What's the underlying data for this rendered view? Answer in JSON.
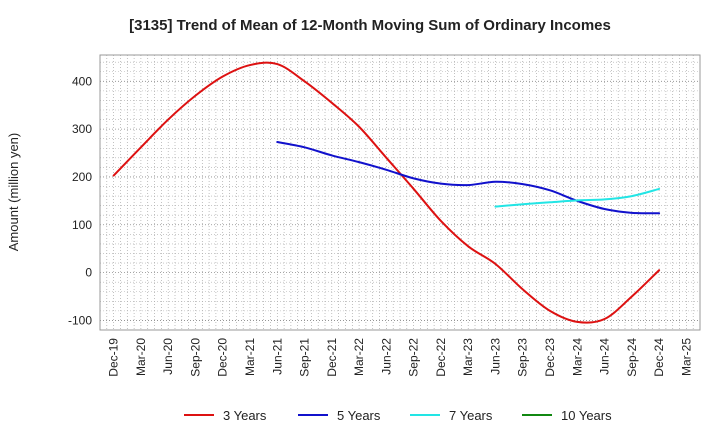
{
  "chart_data": {
    "type": "line",
    "title": "[3135]  Trend of Mean of 12-Month Moving Sum of Ordinary Incomes",
    "xlabel": "",
    "ylabel": "Amount (million yen)",
    "ylim": [
      -120,
      455
    ],
    "yticks": [
      -100,
      0,
      100,
      200,
      300,
      400
    ],
    "categories": [
      "Dec-19",
      "Mar-20",
      "Jun-20",
      "Sep-20",
      "Dec-20",
      "Mar-21",
      "Jun-21",
      "Sep-21",
      "Dec-21",
      "Mar-22",
      "Jun-22",
      "Sep-22",
      "Dec-22",
      "Mar-23",
      "Jun-23",
      "Sep-23",
      "Dec-23",
      "Mar-24",
      "Jun-24",
      "Sep-24",
      "Dec-24",
      "Mar-25"
    ],
    "grid": true,
    "legend_position": "bottom",
    "series": [
      {
        "name": "3 Years",
        "color": "#dd1111",
        "values": [
          203,
          262,
          320,
          370,
          410,
          434,
          436,
          400,
          355,
          305,
          240,
          175,
          108,
          55,
          18,
          -35,
          -80,
          -103,
          -97,
          -50,
          5,
          null
        ]
      },
      {
        "name": "5 Years",
        "color": "#1111cc",
        "values": [
          null,
          null,
          null,
          null,
          null,
          null,
          273,
          262,
          245,
          231,
          215,
          197,
          186,
          183,
          190,
          185,
          172,
          150,
          133,
          125,
          124,
          null
        ]
      },
      {
        "name": "7 Years",
        "color": "#22e5e5",
        "values": [
          null,
          null,
          null,
          null,
          null,
          null,
          null,
          null,
          null,
          null,
          null,
          null,
          null,
          null,
          138,
          143,
          147,
          151,
          153,
          160,
          175,
          null
        ]
      },
      {
        "name": "10 Years",
        "color": "#118811",
        "values": [
          null,
          null,
          null,
          null,
          null,
          null,
          null,
          null,
          null,
          null,
          null,
          null,
          null,
          null,
          null,
          null,
          null,
          null,
          null,
          null,
          null,
          null
        ]
      }
    ]
  }
}
